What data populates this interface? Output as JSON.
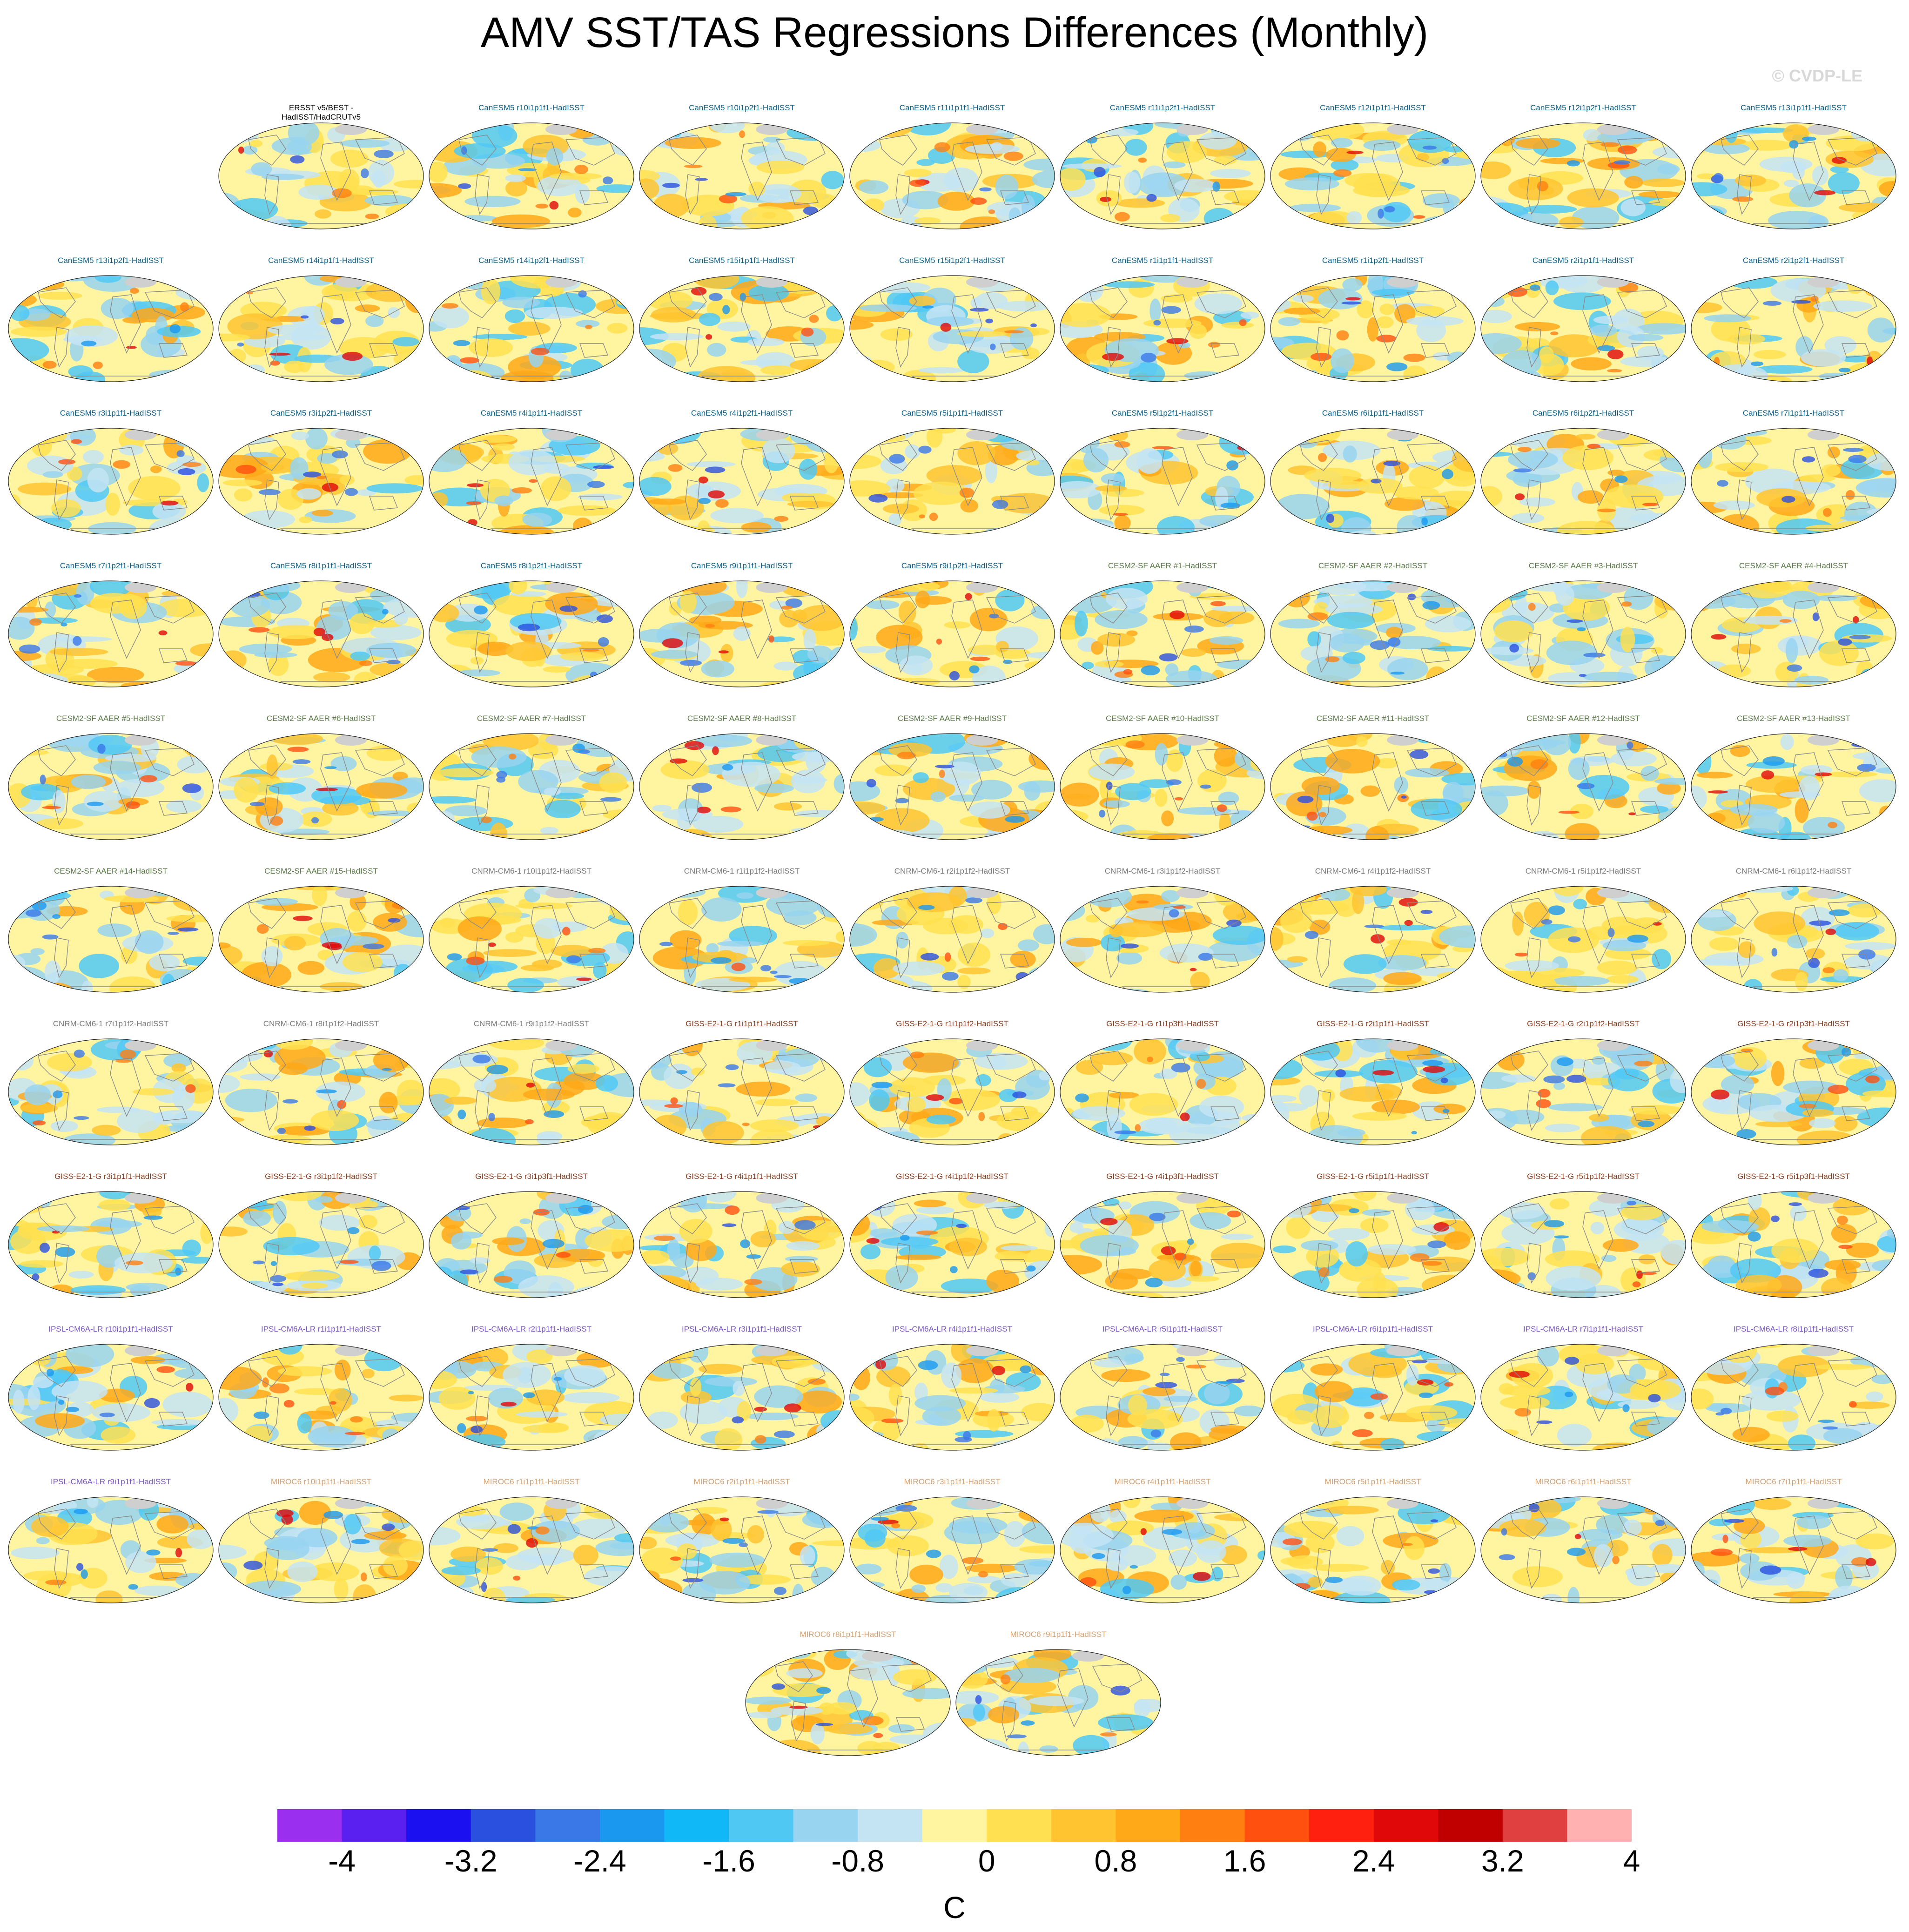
{
  "title": "AMV SST/TAS Regressions Differences (Monthly)",
  "watermark": "© CVDP-LE",
  "colors": {
    "canesm5": "#0b5f86",
    "cesm2": "#5a7a45",
    "cnrm": "#7a7a7a",
    "giss": "#8a3a1a",
    "ipsl": "#7a55c8",
    "miroc": "#d4a070",
    "obs": "#000000"
  },
  "colorbar": {
    "units": "C",
    "colors": [
      "#9b2ff0",
      "#5a20f0",
      "#1a10f0",
      "#2a50e0",
      "#3a78e8",
      "#1a98f0",
      "#10b8f8",
      "#50c8f4",
      "#98d4f0",
      "#c4e4f4",
      "#fff4a0",
      "#ffe050",
      "#ffc430",
      "#ffa818",
      "#ff8010",
      "#ff5010",
      "#ff2010",
      "#e00808",
      "#c00000",
      "#e04040",
      "#ffb0b0"
    ],
    "tick_labels": [
      "-4",
      "-3.2",
      "-2.4",
      "-1.6",
      "-0.8",
      "0",
      "0.8",
      "1.6",
      "2.4",
      "3.2",
      "4"
    ]
  },
  "panels": [
    {
      "label": "ERSST v5/BEST -\nHadISST/HadCRUTv5",
      "group": "obs"
    },
    {
      "label": "CanESM5 r10i1p1f1-HadISST",
      "group": "canesm5"
    },
    {
      "label": "CanESM5 r10i1p2f1-HadISST",
      "group": "canesm5"
    },
    {
      "label": "CanESM5 r11i1p1f1-HadISST",
      "group": "canesm5"
    },
    {
      "label": "CanESM5 r11i1p2f1-HadISST",
      "group": "canesm5"
    },
    {
      "label": "CanESM5 r12i1p1f1-HadISST",
      "group": "canesm5"
    },
    {
      "label": "CanESM5 r12i1p2f1-HadISST",
      "group": "canesm5"
    },
    {
      "label": "CanESM5 r13i1p1f1-HadISST",
      "group": "canesm5"
    },
    {
      "label": "CanESM5 r13i1p2f1-HadISST",
      "group": "canesm5"
    },
    {
      "label": "CanESM5 r14i1p1f1-HadISST",
      "group": "canesm5"
    },
    {
      "label": "CanESM5 r14i1p2f1-HadISST",
      "group": "canesm5"
    },
    {
      "label": "CanESM5 r15i1p1f1-HadISST",
      "group": "canesm5"
    },
    {
      "label": "CanESM5 r15i1p2f1-HadISST",
      "group": "canesm5"
    },
    {
      "label": "CanESM5 r1i1p1f1-HadISST",
      "group": "canesm5"
    },
    {
      "label": "CanESM5 r1i1p2f1-HadISST",
      "group": "canesm5"
    },
    {
      "label": "CanESM5 r2i1p1f1-HadISST",
      "group": "canesm5"
    },
    {
      "label": "CanESM5 r2i1p2f1-HadISST",
      "group": "canesm5"
    },
    {
      "label": "CanESM5 r3i1p1f1-HadISST",
      "group": "canesm5"
    },
    {
      "label": "CanESM5 r3i1p2f1-HadISST",
      "group": "canesm5"
    },
    {
      "label": "CanESM5 r4i1p1f1-HadISST",
      "group": "canesm5"
    },
    {
      "label": "CanESM5 r4i1p2f1-HadISST",
      "group": "canesm5"
    },
    {
      "label": "CanESM5 r5i1p1f1-HadISST",
      "group": "canesm5"
    },
    {
      "label": "CanESM5 r5i1p2f1-HadISST",
      "group": "canesm5"
    },
    {
      "label": "CanESM5 r6i1p1f1-HadISST",
      "group": "canesm5"
    },
    {
      "label": "CanESM5 r6i1p2f1-HadISST",
      "group": "canesm5"
    },
    {
      "label": "CanESM5 r7i1p1f1-HadISST",
      "group": "canesm5"
    },
    {
      "label": "CanESM5 r7i1p2f1-HadISST",
      "group": "canesm5"
    },
    {
      "label": "CanESM5 r8i1p1f1-HadISST",
      "group": "canesm5"
    },
    {
      "label": "CanESM5 r8i1p2f1-HadISST",
      "group": "canesm5"
    },
    {
      "label": "CanESM5 r9i1p1f1-HadISST",
      "group": "canesm5"
    },
    {
      "label": "CanESM5 r9i1p2f1-HadISST",
      "group": "canesm5"
    },
    {
      "label": "CESM2-SF AAER #1-HadISST",
      "group": "cesm2"
    },
    {
      "label": "CESM2-SF AAER #2-HadISST",
      "group": "cesm2"
    },
    {
      "label": "CESM2-SF AAER #3-HadISST",
      "group": "cesm2"
    },
    {
      "label": "CESM2-SF AAER #4-HadISST",
      "group": "cesm2"
    },
    {
      "label": "CESM2-SF AAER #5-HadISST",
      "group": "cesm2"
    },
    {
      "label": "CESM2-SF AAER #6-HadISST",
      "group": "cesm2"
    },
    {
      "label": "CESM2-SF AAER #7-HadISST",
      "group": "cesm2"
    },
    {
      "label": "CESM2-SF AAER #8-HadISST",
      "group": "cesm2"
    },
    {
      "label": "CESM2-SF AAER #9-HadISST",
      "group": "cesm2"
    },
    {
      "label": "CESM2-SF AAER #10-HadISST",
      "group": "cesm2"
    },
    {
      "label": "CESM2-SF AAER #11-HadISST",
      "group": "cesm2"
    },
    {
      "label": "CESM2-SF AAER #12-HadISST",
      "group": "cesm2"
    },
    {
      "label": "CESM2-SF AAER #13-HadISST",
      "group": "cesm2"
    },
    {
      "label": "CESM2-SF AAER #14-HadISST",
      "group": "cesm2"
    },
    {
      "label": "CESM2-SF AAER #15-HadISST",
      "group": "cesm2"
    },
    {
      "label": "CNRM-CM6-1 r10i1p1f2-HadISST",
      "group": "cnrm"
    },
    {
      "label": "CNRM-CM6-1 r1i1p1f2-HadISST",
      "group": "cnrm"
    },
    {
      "label": "CNRM-CM6-1 r2i1p1f2-HadISST",
      "group": "cnrm"
    },
    {
      "label": "CNRM-CM6-1 r3i1p1f2-HadISST",
      "group": "cnrm"
    },
    {
      "label": "CNRM-CM6-1 r4i1p1f2-HadISST",
      "group": "cnrm"
    },
    {
      "label": "CNRM-CM6-1 r5i1p1f2-HadISST",
      "group": "cnrm"
    },
    {
      "label": "CNRM-CM6-1 r6i1p1f2-HadISST",
      "group": "cnrm"
    },
    {
      "label": "CNRM-CM6-1 r7i1p1f2-HadISST",
      "group": "cnrm"
    },
    {
      "label": "CNRM-CM6-1 r8i1p1f2-HadISST",
      "group": "cnrm"
    },
    {
      "label": "CNRM-CM6-1 r9i1p1f2-HadISST",
      "group": "cnrm"
    },
    {
      "label": "GISS-E2-1-G r1i1p1f1-HadISST",
      "group": "giss"
    },
    {
      "label": "GISS-E2-1-G r1i1p1f2-HadISST",
      "group": "giss"
    },
    {
      "label": "GISS-E2-1-G r1i1p3f1-HadISST",
      "group": "giss"
    },
    {
      "label": "GISS-E2-1-G r2i1p1f1-HadISST",
      "group": "giss"
    },
    {
      "label": "GISS-E2-1-G r2i1p1f2-HadISST",
      "group": "giss"
    },
    {
      "label": "GISS-E2-1-G r2i1p3f1-HadISST",
      "group": "giss"
    },
    {
      "label": "GISS-E2-1-G r3i1p1f1-HadISST",
      "group": "giss"
    },
    {
      "label": "GISS-E2-1-G r3i1p1f2-HadISST",
      "group": "giss"
    },
    {
      "label": "GISS-E2-1-G r3i1p3f1-HadISST",
      "group": "giss"
    },
    {
      "label": "GISS-E2-1-G r4i1p1f1-HadISST",
      "group": "giss"
    },
    {
      "label": "GISS-E2-1-G r4i1p1f2-HadISST",
      "group": "giss"
    },
    {
      "label": "GISS-E2-1-G r4i1p3f1-HadISST",
      "group": "giss"
    },
    {
      "label": "GISS-E2-1-G r5i1p1f1-HadISST",
      "group": "giss"
    },
    {
      "label": "GISS-E2-1-G r5i1p1f2-HadISST",
      "group": "giss"
    },
    {
      "label": "GISS-E2-1-G r5i1p3f1-HadISST",
      "group": "giss"
    },
    {
      "label": "IPSL-CM6A-LR r10i1p1f1-HadISST",
      "group": "ipsl"
    },
    {
      "label": "IPSL-CM6A-LR r1i1p1f1-HadISST",
      "group": "ipsl"
    },
    {
      "label": "IPSL-CM6A-LR r2i1p1f1-HadISST",
      "group": "ipsl"
    },
    {
      "label": "IPSL-CM6A-LR r3i1p1f1-HadISST",
      "group": "ipsl"
    },
    {
      "label": "IPSL-CM6A-LR r4i1p1f1-HadISST",
      "group": "ipsl"
    },
    {
      "label": "IPSL-CM6A-LR r5i1p1f1-HadISST",
      "group": "ipsl"
    },
    {
      "label": "IPSL-CM6A-LR r6i1p1f1-HadISST",
      "group": "ipsl"
    },
    {
      "label": "IPSL-CM6A-LR r7i1p1f1-HadISST",
      "group": "ipsl"
    },
    {
      "label": "IPSL-CM6A-LR r8i1p1f1-HadISST",
      "group": "ipsl"
    },
    {
      "label": "IPSL-CM6A-LR r9i1p1f1-HadISST",
      "group": "ipsl"
    },
    {
      "label": "MIROC6 r10i1p1f1-HadISST",
      "group": "miroc"
    },
    {
      "label": "MIROC6 r1i1p1f1-HadISST",
      "group": "miroc"
    },
    {
      "label": "MIROC6 r2i1p1f1-HadISST",
      "group": "miroc"
    },
    {
      "label": "MIROC6 r3i1p1f1-HadISST",
      "group": "miroc"
    },
    {
      "label": "MIROC6 r4i1p1f1-HadISST",
      "group": "miroc"
    },
    {
      "label": "MIROC6 r5i1p1f1-HadISST",
      "group": "miroc"
    },
    {
      "label": "MIROC6 r6i1p1f1-HadISST",
      "group": "miroc"
    },
    {
      "label": "MIROC6 r7i1p1f1-HadISST",
      "group": "miroc"
    },
    {
      "label": "MIROC6 r8i1p1f1-HadISST",
      "group": "miroc"
    },
    {
      "label": "MIROC6 r9i1p1f1-HadISST",
      "group": "miroc"
    }
  ]
}
